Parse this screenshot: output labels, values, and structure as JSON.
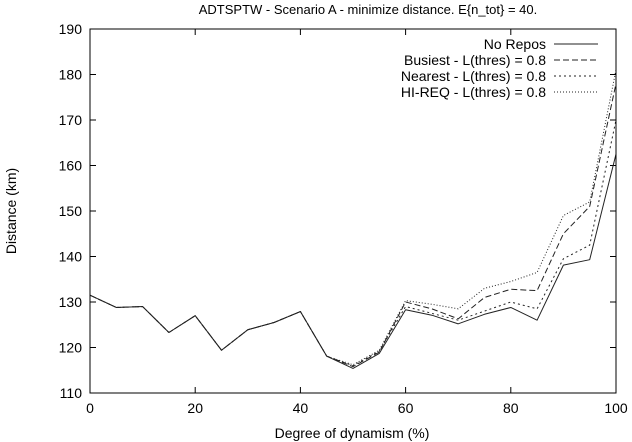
{
  "chart_data": {
    "type": "line",
    "title": "ADTSPTW - Scenario A - minimize distance. E{n_tot} = 40.",
    "xlabel": "Degree of dynamism (%)",
    "ylabel": "Distance (km)",
    "xlim": [
      0,
      100
    ],
    "ylim": [
      110,
      190
    ],
    "xticks": [
      0,
      20,
      40,
      60,
      80,
      100
    ],
    "yticks": [
      110,
      120,
      130,
      140,
      150,
      160,
      170,
      180,
      190
    ],
    "grid": false,
    "legend_position": "top-right",
    "x": [
      0,
      5,
      10,
      15,
      20,
      25,
      30,
      35,
      40,
      45,
      50,
      55,
      60,
      65,
      70,
      75,
      80,
      85,
      90,
      95,
      100
    ],
    "series": [
      {
        "name": "No Repos",
        "style": "solid",
        "values": [
          131.5,
          128.8,
          129.0,
          123.3,
          127.0,
          119.4,
          123.9,
          125.5,
          127.9,
          118.1,
          115.4,
          118.7,
          128.3,
          127.1,
          125.2,
          127.3,
          128.8,
          126.0,
          138.1,
          139.3,
          162.5
        ]
      },
      {
        "name": "Busiest - L(thres) = 0.8",
        "style": "dashed",
        "values": [
          131.5,
          128.8,
          129.0,
          123.3,
          127.0,
          119.4,
          123.9,
          125.5,
          127.9,
          118.1,
          115.8,
          119.0,
          130.0,
          128.5,
          126.3,
          131.0,
          132.8,
          132.5,
          145.0,
          151.0,
          178.0
        ]
      },
      {
        "name": "Nearest - L(thres) = 0.8",
        "style": "dotted",
        "values": [
          131.5,
          128.8,
          129.0,
          123.3,
          127.0,
          119.4,
          123.9,
          125.5,
          127.9,
          118.1,
          116.0,
          119.2,
          129.0,
          127.5,
          126.0,
          128.0,
          130.0,
          128.5,
          139.5,
          142.5,
          170.0
        ]
      },
      {
        "name": "HI-REQ - L(thres) = 0.8",
        "style": "fine-dotted",
        "values": [
          131.5,
          128.8,
          129.0,
          123.3,
          127.0,
          119.4,
          123.9,
          125.5,
          127.9,
          118.1,
          116.2,
          119.4,
          130.3,
          129.5,
          128.5,
          133.0,
          134.5,
          136.5,
          149.0,
          152.0,
          181.0
        ]
      }
    ]
  }
}
